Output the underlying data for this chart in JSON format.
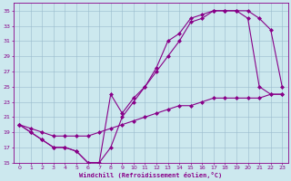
{
  "xlabel": "Windchill (Refroidissement éolien,°C)",
  "bg_color": "#cce8ee",
  "line_color": "#880088",
  "grid_color": "#99bbcc",
  "xlim": [
    -0.5,
    23.5
  ],
  "ylim": [
    15,
    36
  ],
  "xticks": [
    0,
    1,
    2,
    3,
    4,
    5,
    6,
    7,
    8,
    9,
    10,
    11,
    12,
    13,
    14,
    15,
    16,
    17,
    18,
    19,
    20,
    21,
    22,
    23
  ],
  "yticks": [
    15,
    17,
    19,
    21,
    23,
    25,
    27,
    29,
    31,
    33,
    35
  ],
  "line1_x": [
    0,
    1,
    2,
    3,
    4,
    5,
    6,
    7,
    8,
    9,
    10,
    11,
    12,
    13,
    14,
    15,
    16,
    17,
    18,
    19,
    20,
    21,
    22,
    23
  ],
  "line1_y": [
    20.0,
    19.0,
    18.0,
    17.0,
    17.0,
    16.5,
    15.0,
    15.0,
    24.0,
    21.5,
    23.5,
    25.0,
    27.5,
    31.0,
    32.0,
    34.0,
    34.5,
    35.0,
    35.0,
    35.0,
    35.0,
    34.0,
    32.5,
    25.0
  ],
  "line2_x": [
    0,
    1,
    2,
    3,
    4,
    5,
    6,
    7,
    8,
    9,
    10,
    11,
    12,
    13,
    14,
    15,
    16,
    17,
    18,
    19,
    20,
    21,
    22,
    23
  ],
  "line2_y": [
    20.0,
    19.0,
    18.0,
    17.0,
    17.0,
    16.5,
    15.0,
    15.0,
    17.0,
    21.0,
    23.0,
    25.0,
    27.0,
    29.0,
    31.0,
    33.5,
    34.0,
    35.0,
    35.0,
    35.0,
    34.0,
    25.0,
    24.0,
    24.0
  ],
  "line3_x": [
    0,
    1,
    2,
    3,
    4,
    5,
    6,
    7,
    8,
    9,
    10,
    11,
    12,
    13,
    14,
    15,
    16,
    17,
    18,
    19,
    20,
    21,
    22,
    23
  ],
  "line3_y": [
    20.0,
    19.5,
    19.0,
    18.5,
    18.5,
    18.5,
    18.5,
    19.0,
    19.5,
    20.0,
    20.5,
    21.0,
    21.5,
    22.0,
    22.5,
    22.5,
    23.0,
    23.5,
    23.5,
    23.5,
    23.5,
    23.5,
    24.0,
    24.0
  ],
  "marker": "D",
  "markersize": 2.0,
  "linewidth": 0.8
}
